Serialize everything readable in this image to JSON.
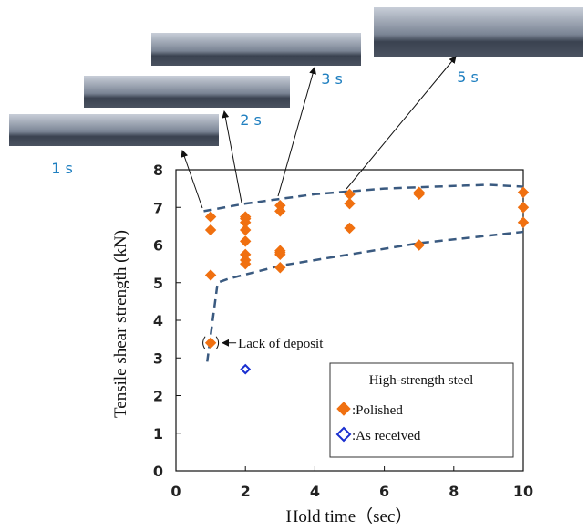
{
  "chart_data": {
    "type": "scatter",
    "x_label": "Hold time（sec）",
    "y_label": "Tensile shear strength (kN)",
    "xlim": [
      0,
      10
    ],
    "xticks": [
      0,
      2,
      4,
      6,
      8,
      10
    ],
    "ylim": [
      0,
      8
    ],
    "yticks": [
      0,
      1,
      2,
      3,
      4,
      5,
      6,
      7,
      8
    ],
    "legend_title": "High-strength steel",
    "series": [
      {
        "name": ":Polished",
        "color": "#f07010",
        "marker": "filled-diamond",
        "x": [
          1,
          1,
          1,
          1,
          2,
          2,
          2,
          2,
          2,
          2,
          2,
          2,
          3,
          3,
          3,
          3,
          3,
          3,
          5,
          5,
          5,
          7,
          7,
          7,
          10,
          10,
          10
        ],
        "y": [
          6.75,
          6.4,
          5.2,
          3.4,
          6.75,
          6.7,
          6.6,
          6.4,
          6.1,
          5.75,
          5.6,
          5.5,
          7.05,
          6.9,
          5.85,
          5.8,
          5.75,
          5.4,
          7.35,
          7.1,
          6.45,
          7.4,
          7.35,
          6.0,
          7.4,
          7.0,
          6.6
        ]
      },
      {
        "name": ":As received",
        "color": "#1a2fd0",
        "marker": "open-diamond",
        "x": [
          2
        ],
        "y": [
          2.7
        ]
      }
    ],
    "curves": [
      {
        "color": "#3a5a80",
        "x": [
          0.8,
          2,
          4,
          6,
          8,
          9,
          10
        ],
        "y": [
          6.9,
          7.1,
          7.35,
          7.5,
          7.57,
          7.6,
          7.55
        ]
      },
      {
        "color": "#3a5a80",
        "x": [
          0.9,
          1.2,
          1.5,
          3,
          5,
          7,
          10
        ],
        "y": [
          2.9,
          5.0,
          5.1,
          5.45,
          5.75,
          6.05,
          6.35
        ]
      }
    ],
    "annotation": {
      "text": "Lack of deposit"
    },
    "photos": [
      "1 s",
      "2 s",
      "3 s",
      "5 s"
    ]
  }
}
